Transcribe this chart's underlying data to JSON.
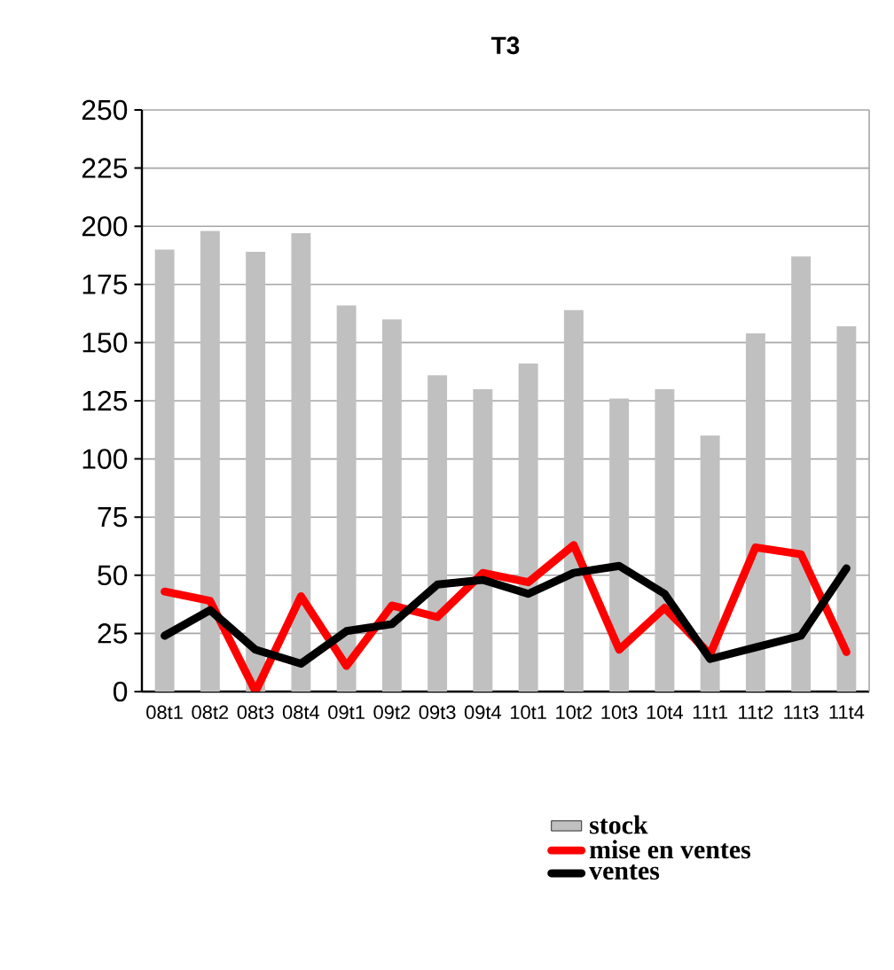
{
  "chart_data": {
    "type": "bar",
    "title": "T3",
    "categories": [
      "08t1",
      "08t2",
      "08t3",
      "08t4",
      "09t1",
      "09t2",
      "09t3",
      "09t4",
      "10t1",
      "10t2",
      "10t3",
      "10t4",
      "11t1",
      "11t2",
      "11t3",
      "11t4"
    ],
    "series": [
      {
        "name": "stock",
        "color": "#c0c0c0",
        "values": [
          190,
          198,
          189,
          197,
          166,
          160,
          136,
          130,
          141,
          164,
          126,
          130,
          110,
          154,
          187,
          157
        ]
      },
      {
        "name": "mise en ventes",
        "type": "line",
        "color": "#ff0000",
        "values": [
          43,
          39,
          0,
          41,
          11,
          37,
          32,
          51,
          47,
          63,
          18,
          36,
          16,
          62,
          59,
          17
        ]
      },
      {
        "name": "ventes",
        "type": "line",
        "color": "#000000",
        "values": [
          24,
          35,
          18,
          12,
          26,
          29,
          46,
          48,
          42,
          51,
          54,
          42,
          14,
          19,
          24,
          53
        ]
      }
    ],
    "ylim": [
      0,
      250
    ],
    "yticks": [
      0,
      25,
      50,
      75,
      100,
      125,
      150,
      175,
      200,
      225,
      250
    ],
    "grid": "y",
    "legend": "bottom",
    "marker": "none",
    "line_style": "solid"
  }
}
